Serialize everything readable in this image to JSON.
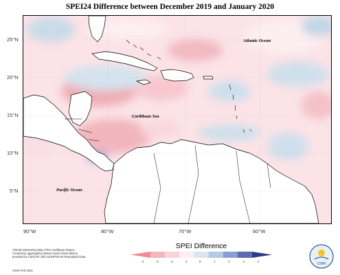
{
  "title": "SPEI24 Difference between December 2019 and January 2020",
  "map": {
    "ocean_labels": [
      {
        "name": "atlantic-ocean",
        "text": "Atlantic Ocean"
      },
      {
        "name": "caribbean-sea",
        "text": "Caribbean Sea"
      },
      {
        "name": "pacific-ocean",
        "text": "Pacific Ocean"
      }
    ],
    "lat_labels": [
      "25°N",
      "20°N",
      "15°N",
      "10°N",
      "5°N"
    ],
    "lon_labels": [
      "90°W",
      "80°W",
      "70°W",
      "60°W"
    ]
  },
  "legend": {
    "title": "SPEI Difference",
    "ticks": [
      "-4",
      "-3",
      "-2",
      "-1",
      "0",
      "1",
      "2",
      "3",
      "4"
    ],
    "colors": [
      "#f08a94",
      "#f5b6bd",
      "#f9d3d7",
      "#fdeef0",
      "#d9e6ef",
      "#b2cbe1",
      "#8a9ed6",
      "#5b6bb5",
      "#2e3a86"
    ]
  },
  "footer": {
    "lines": [
      "Climate Monitoring Map of the Caribbean Region.",
      "Created by aggregating station based observations,",
      "provided by CariCOF, with NCEP/NCAR Reanalysis Data."
    ],
    "credit": "CIMH Feb 2020"
  },
  "logo": {
    "text": "CIMH"
  }
}
